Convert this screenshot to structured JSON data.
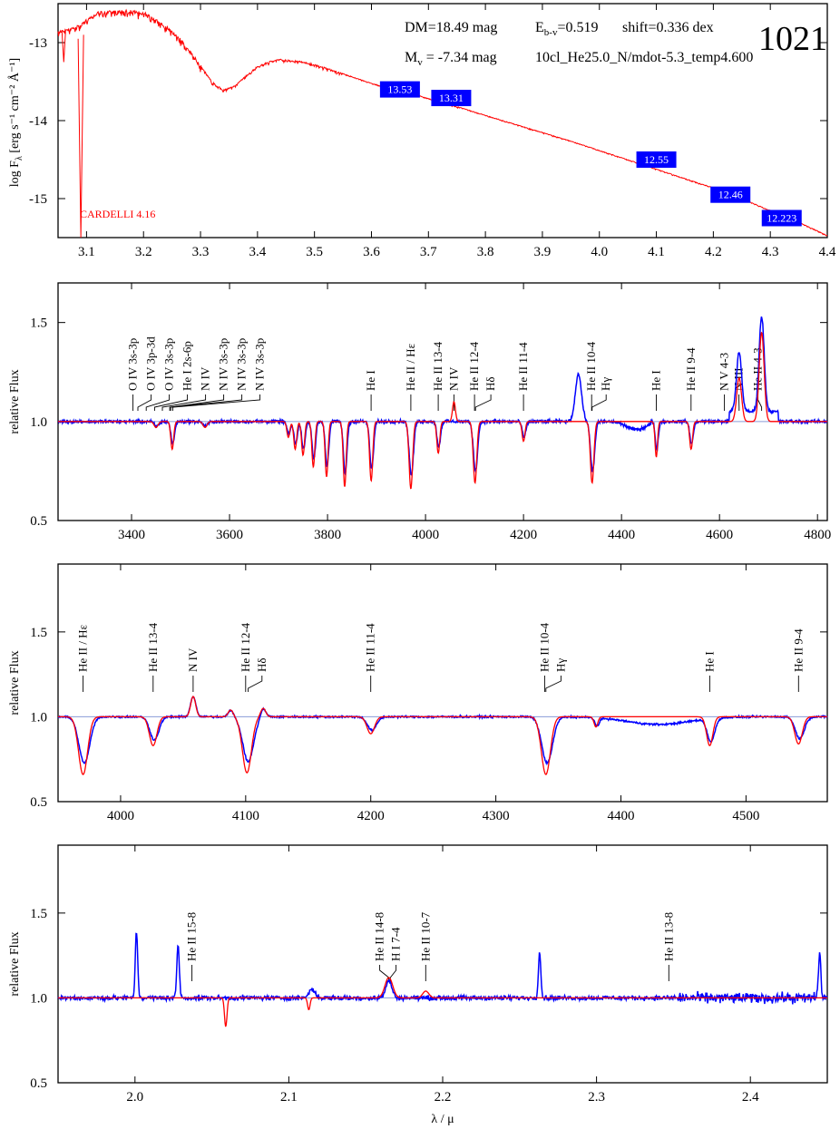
{
  "sed_info": {
    "dm": "DM=18.49 mag",
    "ebv_prefix": "E",
    "ebv_sub": "b-v",
    "ebv_value": "=0.519",
    "shift": "shift=0.336 dex",
    "mv_prefix": "M",
    "mv_sub": "v",
    "mv_value": " = -7.34 mag",
    "model": "10cl_He25.0_N/mdot-5.3_temp4.600",
    "id": "1021",
    "reddening_law": "CARDELLI 4.16"
  },
  "labels": {
    "sed_ylabel_main": "log F",
    "sed_ylabel_sub": "λ",
    "sed_ylabel_unit": " [erg s⁻¹ cm⁻² Å⁻¹]",
    "rel_flux": "relative Flux",
    "bottom_xlabel": "λ / μ"
  },
  "chart_data": [
    {
      "type": "line",
      "panel": "sed",
      "xlim": [
        3.05,
        4.4
      ],
      "ylim": [
        -15.5,
        -12.5
      ],
      "xticks": [
        3.1,
        3.2,
        3.3,
        3.4,
        3.5,
        3.6,
        3.7,
        3.8,
        3.9,
        4.0,
        4.1,
        4.2,
        4.3,
        4.4
      ],
      "yticks": [
        -13,
        -14,
        -15
      ],
      "model_x": [
        3.05,
        3.08,
        3.12,
        3.16,
        3.2,
        3.24,
        3.27,
        3.3,
        3.32,
        3.34,
        3.36,
        3.38,
        3.4,
        3.42,
        3.44,
        3.48,
        3.52,
        3.56,
        3.6,
        3.64,
        3.68,
        3.72,
        3.76,
        3.8,
        3.85,
        3.9,
        3.95,
        4.0,
        4.05,
        4.1,
        4.15,
        4.2,
        4.25,
        4.3,
        4.35,
        4.4
      ],
      "model_y": [
        -12.85,
        -12.8,
        -12.6,
        -12.57,
        -12.6,
        -12.78,
        -12.98,
        -13.28,
        -13.5,
        -13.6,
        -13.55,
        -13.42,
        -13.3,
        -13.24,
        -13.21,
        -13.24,
        -13.32,
        -13.42,
        -13.52,
        -13.6,
        -13.67,
        -13.76,
        -13.84,
        -13.93,
        -14.04,
        -14.15,
        -14.26,
        -14.38,
        -14.5,
        -14.62,
        -14.74,
        -14.86,
        -15.0,
        -15.15,
        -15.3,
        -15.47
      ],
      "photometry": [
        {
          "label": "13.53",
          "x": 3.65,
          "y": -13.6
        },
        {
          "label": "13.31",
          "x": 3.74,
          "y": -13.71
        },
        {
          "label": "12.55",
          "x": 4.1,
          "y": -14.5
        },
        {
          "label": "12.46",
          "x": 4.23,
          "y": -14.95
        },
        {
          "label": "12.223",
          "x": 4.32,
          "y": -15.25
        }
      ]
    },
    {
      "type": "line",
      "panel": "optical",
      "xlim": [
        3250,
        4820
      ],
      "ylim": [
        0.5,
        1.7
      ],
      "xticks": [
        3400,
        3600,
        3800,
        4000,
        4200,
        4400,
        4600,
        4800
      ],
      "yticks": [
        0.5,
        1.0,
        1.5
      ],
      "absorption": [
        {
          "x": 3450,
          "d": 0.03,
          "w": 4
        },
        {
          "x": 3483,
          "d": 0.14,
          "w": 3
        },
        {
          "x": 3550,
          "d": 0.03,
          "w": 4
        },
        {
          "x": 3720,
          "d": 0.08,
          "w": 3
        },
        {
          "x": 3734,
          "d": 0.14,
          "w": 3
        },
        {
          "x": 3750,
          "d": 0.17,
          "w": 3
        },
        {
          "x": 3771,
          "d": 0.23,
          "w": 3
        },
        {
          "x": 3798,
          "d": 0.28,
          "w": 3
        },
        {
          "x": 3835,
          "d": 0.33,
          "w": 3
        },
        {
          "x": 3889,
          "d": 0.3,
          "w": 3.2
        },
        {
          "x": 3970,
          "d": 0.34,
          "w": 3.6
        },
        {
          "x": 4026,
          "d": 0.16,
          "w": 3
        },
        {
          "x": 4101,
          "d": 0.31,
          "w": 3.6
        },
        {
          "x": 4200,
          "d": 0.1,
          "w": 3
        },
        {
          "x": 4340,
          "d": 0.31,
          "w": 3.6
        },
        {
          "x": 4471,
          "d": 0.18,
          "w": 2.5
        },
        {
          "x": 4542,
          "d": 0.14,
          "w": 3
        },
        {
          "x": 4860,
          "d": 0.1,
          "w": 3
        }
      ],
      "emission": [
        {
          "x": 4058,
          "h": 0.1,
          "w": 3
        },
        {
          "x": 4640,
          "h": 0.22,
          "w": 5
        },
        {
          "x": 4686,
          "h": 0.45,
          "w": 5
        }
      ],
      "observed_emission": [
        {
          "x": 4312,
          "h": 0.24,
          "w": 6
        },
        {
          "x": 4640,
          "h": 0.3,
          "w": 5
        },
        {
          "x": 4686,
          "h": 0.48,
          "w": 5
        }
      ],
      "line_labels": [
        {
          "text": "O IV 3s-3p",
          "x": 3403
        },
        {
          "text": "O IV 3p-3d",
          "x": 3413
        },
        {
          "text": "O IV 3s-3p",
          "x": 3430
        },
        {
          "text": "He I 2s-6p",
          "x": 3447
        },
        {
          "text": "N IV",
          "x": 3463
        },
        {
          "text": "N IV 3s-3p",
          "x": 3480
        },
        {
          "text": "N IV 3s-3p",
          "x": 3478
        },
        {
          "text": "N IV 3s-3p",
          "x": 3484
        },
        {
          "text": "He I",
          "x": 3889
        },
        {
          "text": "He II / Hε",
          "x": 3970
        },
        {
          "text": "He II 13-4",
          "x": 4026
        },
        {
          "text": "N IV",
          "x": 4058
        },
        {
          "text": "He II 12-4",
          "x": 4100
        },
        {
          "text": "Hδ",
          "x": 4102
        },
        {
          "text": "He II 11-4",
          "x": 4200
        },
        {
          "text": "He II 10-4",
          "x": 4339
        },
        {
          "text": "Hγ",
          "x": 4340
        },
        {
          "text": "He I",
          "x": 4471
        },
        {
          "text": "He II 9-4",
          "x": 4542
        },
        {
          "text": "N V 4-3",
          "x": 4610
        },
        {
          "text": "N III",
          "x": 4640
        },
        {
          "text": "He II 4-3",
          "x": 4686
        }
      ]
    },
    {
      "type": "line",
      "panel": "blue_zoom",
      "xlim": [
        3950,
        4565
      ],
      "ylim": [
        0.5,
        1.9
      ],
      "xticks": [
        4000,
        4100,
        4200,
        4300,
        4400,
        4500
      ],
      "yticks": [
        0.5,
        1.0,
        1.5
      ],
      "absorption": [
        {
          "x": 3970,
          "d": 0.34,
          "w": 3.6
        },
        {
          "x": 4026,
          "d": 0.17,
          "w": 3
        },
        {
          "x": 4101,
          "d": 0.33,
          "w": 3.6
        },
        {
          "x": 4200,
          "d": 0.1,
          "w": 3
        },
        {
          "x": 4340,
          "d": 0.34,
          "w": 3.6
        },
        {
          "x": 4380,
          "d": 0.06,
          "w": 1.5
        },
        {
          "x": 4471,
          "d": 0.17,
          "w": 2.5
        },
        {
          "x": 4542,
          "d": 0.16,
          "w": 3
        }
      ],
      "emission": [
        {
          "x": 4058,
          "h": 0.12,
          "w": 2
        },
        {
          "x": 4088,
          "h": 0.04,
          "w": 2
        },
        {
          "x": 4114,
          "h": 0.05,
          "w": 2
        }
      ],
      "line_labels": [
        {
          "text": "He II / Hε",
          "x": 3970
        },
        {
          "text": "He II 13-4",
          "x": 4026
        },
        {
          "text": "N IV",
          "x": 4058
        },
        {
          "text": "He II 12-4",
          "x": 4100
        },
        {
          "text": "Hδ",
          "x": 4102
        },
        {
          "text": "He II 11-4",
          "x": 4200
        },
        {
          "text": "He II 10-4",
          "x": 4339
        },
        {
          "text": "Hγ",
          "x": 4340
        },
        {
          "text": "He I",
          "x": 4471
        },
        {
          "text": "He II 9-4",
          "x": 4542
        }
      ]
    },
    {
      "type": "line",
      "panel": "infrared",
      "xlim": [
        1.95,
        2.45
      ],
      "ylim": [
        0.5,
        1.9
      ],
      "xticks": [
        2.0,
        2.1,
        2.2,
        2.3,
        2.4
      ],
      "yticks": [
        0.5,
        1.0,
        1.5
      ],
      "spikes": [
        {
          "x": 2.001,
          "h": 0.39
        },
        {
          "x": 2.028,
          "h": 0.31
        },
        {
          "x": 2.263,
          "h": 0.27
        },
        {
          "x": 2.445,
          "h": 0.26
        }
      ],
      "line_labels": [
        {
          "text": "He II 15-8",
          "x": 2.037
        },
        {
          "text": "He II 14-8",
          "x": 2.165
        },
        {
          "text": "H I 7-4",
          "x": 2.166
        },
        {
          "text": "He II 10-7",
          "x": 2.189
        },
        {
          "text": "He II 13-8",
          "x": 2.347
        }
      ]
    }
  ]
}
